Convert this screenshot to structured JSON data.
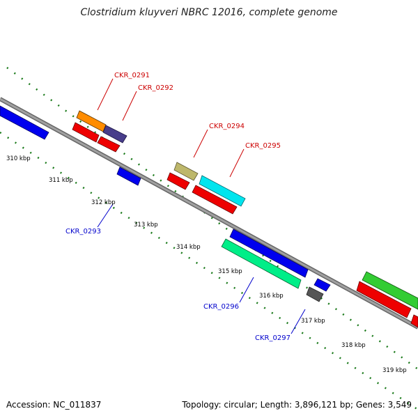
{
  "title": "Clostridium kluyveri NBRC 12016, complete genome",
  "footer": {
    "accession": "Accession: NC_011837",
    "stats": "Topology: circular; Length: 3,896,121 bp; Genes: 3,549"
  },
  "colors": {
    "backbone": "#808080",
    "ticks": "#1a7a1a",
    "label_forward": "#cc0000",
    "label_reverse": "#0000cc"
  },
  "ticks": [
    "310 kbp",
    "311 kbp",
    "312 kbp",
    "313 kbp",
    "314 kbp",
    "315 kbp",
    "316 kbp",
    "317 kbp",
    "318 kbp",
    "319 kbp"
  ],
  "genes": [
    {
      "label": "CKR_0291",
      "color": "#ff8c00",
      "strand": "+"
    },
    {
      "label": "CKR_0292",
      "color": "#483d8b",
      "strand": "+"
    },
    {
      "label": "CKR_0293",
      "color": "#0000ee",
      "strand": "-"
    },
    {
      "label": "CKR_0294",
      "color": "#bdb76b",
      "strand": "+"
    },
    {
      "label": "CKR_0295",
      "color": "#00e5ee",
      "strand": "+"
    },
    {
      "label": "CKR_0296",
      "color": "#00ee88",
      "strand": "-"
    },
    {
      "label": "CKR_0297",
      "color": "#555555",
      "strand": "-"
    }
  ]
}
